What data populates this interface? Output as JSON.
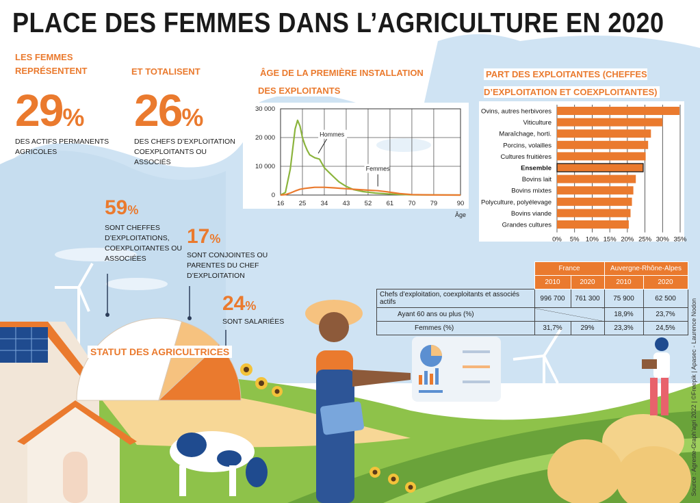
{
  "title": "PLACE DES FEMMES DANS L’AGRICULTURE EN 2020",
  "stats": {
    "intro": "LES FEMMES REPRÉSENTENT",
    "actifs": {
      "value": "29",
      "pct": "%",
      "label": "DES ACTIFS PERMANENTS AGRICOLES"
    },
    "total_intro": "ET TOTALISENT",
    "chefs": {
      "value": "26",
      "pct": "%",
      "label": "DES CHEFS D’EXPLOITATION COEXPLOITANTS OU ASSOCIÉS"
    }
  },
  "statut": {
    "title": "STATUT DES AGRICULTRICES",
    "items": [
      {
        "value": "59",
        "pct": "%",
        "label": "SONT  CHEFFES D’EXPLOITATIONS, COEXPLOITANTES OU ASSOCIÉES"
      },
      {
        "value": "17",
        "pct": "%",
        "label": "SONT  CONJOINTES OU PARENTES DU CHEF D’EXPLOITATION"
      },
      {
        "value": "24",
        "pct": "%",
        "label": "SONT SALARIÉES"
      }
    ]
  },
  "line_chart": {
    "title": "ÂGE DE LA PREMIÈRE INSTALLATION DES EXPLOITANTS",
    "ylabels": [
      "30 000",
      "20 000",
      "10 000",
      "0"
    ],
    "xlabels": [
      "16",
      "25",
      "34",
      "43",
      "52",
      "61",
      "70",
      "79",
      "90"
    ],
    "xunit": "Âge",
    "series_labels": [
      "Hommes",
      "Femmes"
    ]
  },
  "bar_chart": {
    "title": "PART DES EXPLOITANTES (CHEFFES D’EXPLOITATION ET COEXPLOITANTES)",
    "xlabels": [
      "0%",
      "5%",
      "10%",
      "15%",
      "20%",
      "25%",
      "30%",
      "35%"
    ],
    "categories": [
      "Ovins, autres herbivores",
      "Viticulture",
      "Maraîchage, horti.",
      "Porcins, volailles",
      "Cultures fruitières",
      "Ensemble",
      "Bovins lait",
      "Bovins mixtes",
      "Polyculture, polyélevage",
      "Bovins viande",
      "Grandes cultures"
    ]
  },
  "chart_data": [
    {
      "type": "line",
      "title": "ÂGE DE LA PREMIÈRE INSTALLATION DES EXPLOITANTS",
      "xlabel": "Âge",
      "ylabel": "",
      "xlim": [
        16,
        90
      ],
      "ylim": [
        0,
        30000
      ],
      "grid": true,
      "series": [
        {
          "name": "Hommes",
          "color": "#8bb43c",
          "x": [
            16,
            18,
            20,
            22,
            23,
            24,
            25,
            26,
            27,
            28,
            30,
            32,
            34,
            36,
            38,
            40,
            43,
            46,
            50,
            55,
            60,
            65,
            70,
            80,
            90
          ],
          "y": [
            0,
            900,
            9000,
            23000,
            26000,
            24000,
            20000,
            17500,
            15500,
            14000,
            13000,
            12500,
            9500,
            7800,
            6200,
            4600,
            3000,
            1900,
            1200,
            700,
            400,
            200,
            100,
            30,
            0
          ]
        },
        {
          "name": "Femmes",
          "color": "#ea7a2e",
          "x": [
            16,
            18,
            20,
            22,
            24,
            26,
            28,
            30,
            34,
            38,
            43,
            48,
            52,
            56,
            60,
            65,
            70,
            80,
            90
          ],
          "y": [
            0,
            150,
            700,
            1400,
            2000,
            2300,
            2500,
            2700,
            2700,
            2500,
            2200,
            1900,
            1700,
            1500,
            1100,
            500,
            150,
            30,
            0
          ]
        }
      ]
    },
    {
      "type": "bar",
      "orientation": "horizontal",
      "title": "PART DES EXPLOITANTES (CHEFFES D’EXPLOITATION ET COEXPLOITANTES)",
      "xlim": [
        0,
        35
      ],
      "unit": "%",
      "grid": true,
      "categories": [
        "Ovins, autres herbivores",
        "Viticulture",
        "Maraîchage, horti.",
        "Porcins, volailles",
        "Cultures fruitières",
        "Ensemble",
        "Bovins lait",
        "Bovins mixtes",
        "Polyculture, polyélevage",
        "Bovins viande",
        "Grandes cultures"
      ],
      "values": [
        34.8,
        30,
        26.7,
        25.9,
        25.2,
        24.5,
        22.4,
        21.7,
        21.3,
        20.9,
        20.4
      ],
      "color": "#ea7a2e",
      "highlight": "Ensemble"
    },
    {
      "type": "pie",
      "title": "STATUT DES AGRICULTRICES",
      "categories": [
        "Cheffes d’exploitations, coexploitantes ou associées",
        "Conjointes ou parentes du chef d’exploitation",
        "Salariées"
      ],
      "values": [
        59,
        17,
        24
      ],
      "colors": [
        "#ffffff",
        "#f6c27f",
        "#ea7a2e"
      ]
    },
    {
      "type": "table",
      "header_groups": [
        "France",
        "Auvergne-Rhône-Alpes"
      ],
      "header_years": [
        "2010",
        "2020",
        "2010",
        "2020"
      ],
      "rows": [
        {
          "label": "Chefs d’exploitation, coexploitants et associés actifs",
          "cells": [
            "996 700",
            "761 300",
            "75 900",
            "62 500"
          ]
        },
        {
          "label": "Ayant 60 ans ou plus (%)",
          "cells": [
            "",
            "",
            "18,9%",
            "23,7%"
          ]
        },
        {
          "label": "Femmes (%)",
          "cells": [
            "31,7%",
            "29%",
            "23,3%",
            "24,5%"
          ]
        }
      ]
    }
  ],
  "credit": "Source : Agreste-Graph'agri 2022 | ©Freepik | Apasec - Laurence Nodon"
}
